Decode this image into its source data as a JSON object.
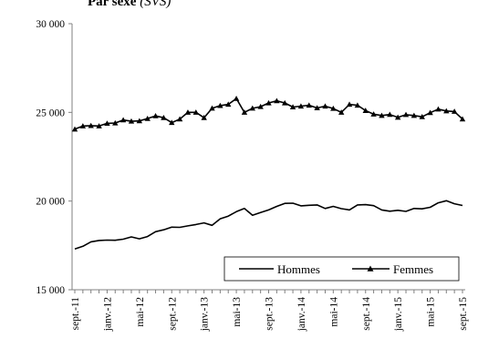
{
  "chart_data": {
    "type": "line",
    "title": "Par sexe",
    "subtitle": "(SVS)",
    "xlabel": "",
    "ylabel": "",
    "ylim": [
      15000,
      30000
    ],
    "y_ticks": [
      15000,
      20000,
      25000,
      30000
    ],
    "y_tick_labels": [
      "15 000",
      "20 000",
      "25 000",
      "30 000"
    ],
    "x_tick_labels": [
      "sept.-11",
      "janv.-12",
      "mai-12",
      "sept.-12",
      "janv.-13",
      "mai-13",
      "sept.-13",
      "janv.-14",
      "mai-14",
      "sept.-14",
      "janv.-15",
      "mai-15",
      "sept.-15"
    ],
    "x": [
      "2011-09",
      "2011-10",
      "2011-11",
      "2011-12",
      "2012-01",
      "2012-02",
      "2012-03",
      "2012-04",
      "2012-05",
      "2012-06",
      "2012-07",
      "2012-08",
      "2012-09",
      "2012-10",
      "2012-11",
      "2012-12",
      "2013-01",
      "2013-02",
      "2013-03",
      "2013-04",
      "2013-05",
      "2013-06",
      "2013-07",
      "2013-08",
      "2013-09",
      "2013-10",
      "2013-11",
      "2013-12",
      "2014-01",
      "2014-02",
      "2014-03",
      "2014-04",
      "2014-05",
      "2014-06",
      "2014-07",
      "2014-08",
      "2014-09",
      "2014-10",
      "2014-11",
      "2014-12",
      "2015-01",
      "2015-02",
      "2015-03",
      "2015-04",
      "2015-05",
      "2015-06",
      "2015-07",
      "2015-08",
      "2015-09"
    ],
    "grid": false,
    "legend_position": "bottom-right",
    "series": [
      {
        "name": "Hommes",
        "color": "#000000",
        "marker": "none",
        "values": [
          17300,
          17450,
          17700,
          17780,
          17800,
          17790,
          17850,
          17980,
          17870,
          18000,
          18270,
          18380,
          18530,
          18520,
          18600,
          18680,
          18770,
          18630,
          19000,
          19150,
          19400,
          19580,
          19200,
          19350,
          19500,
          19700,
          19870,
          19880,
          19730,
          19760,
          19780,
          19580,
          19700,
          19570,
          19500,
          19780,
          19800,
          19740,
          19500,
          19430,
          19480,
          19420,
          19580,
          19560,
          19650,
          19900,
          20020,
          19850,
          19750
        ]
      },
      {
        "name": "Femmes",
        "color": "#000000",
        "marker": "triangle",
        "values": [
          24050,
          24230,
          24250,
          24230,
          24380,
          24400,
          24570,
          24500,
          24520,
          24650,
          24800,
          24700,
          24420,
          24620,
          25000,
          25000,
          24700,
          25230,
          25380,
          25450,
          25780,
          25000,
          25230,
          25320,
          25530,
          25650,
          25530,
          25300,
          25350,
          25400,
          25250,
          25350,
          25220,
          25000,
          25450,
          25400,
          25100,
          24900,
          24820,
          24880,
          24720,
          24870,
          24820,
          24750,
          24980,
          25180,
          25080,
          25050,
          24620
        ]
      }
    ]
  }
}
